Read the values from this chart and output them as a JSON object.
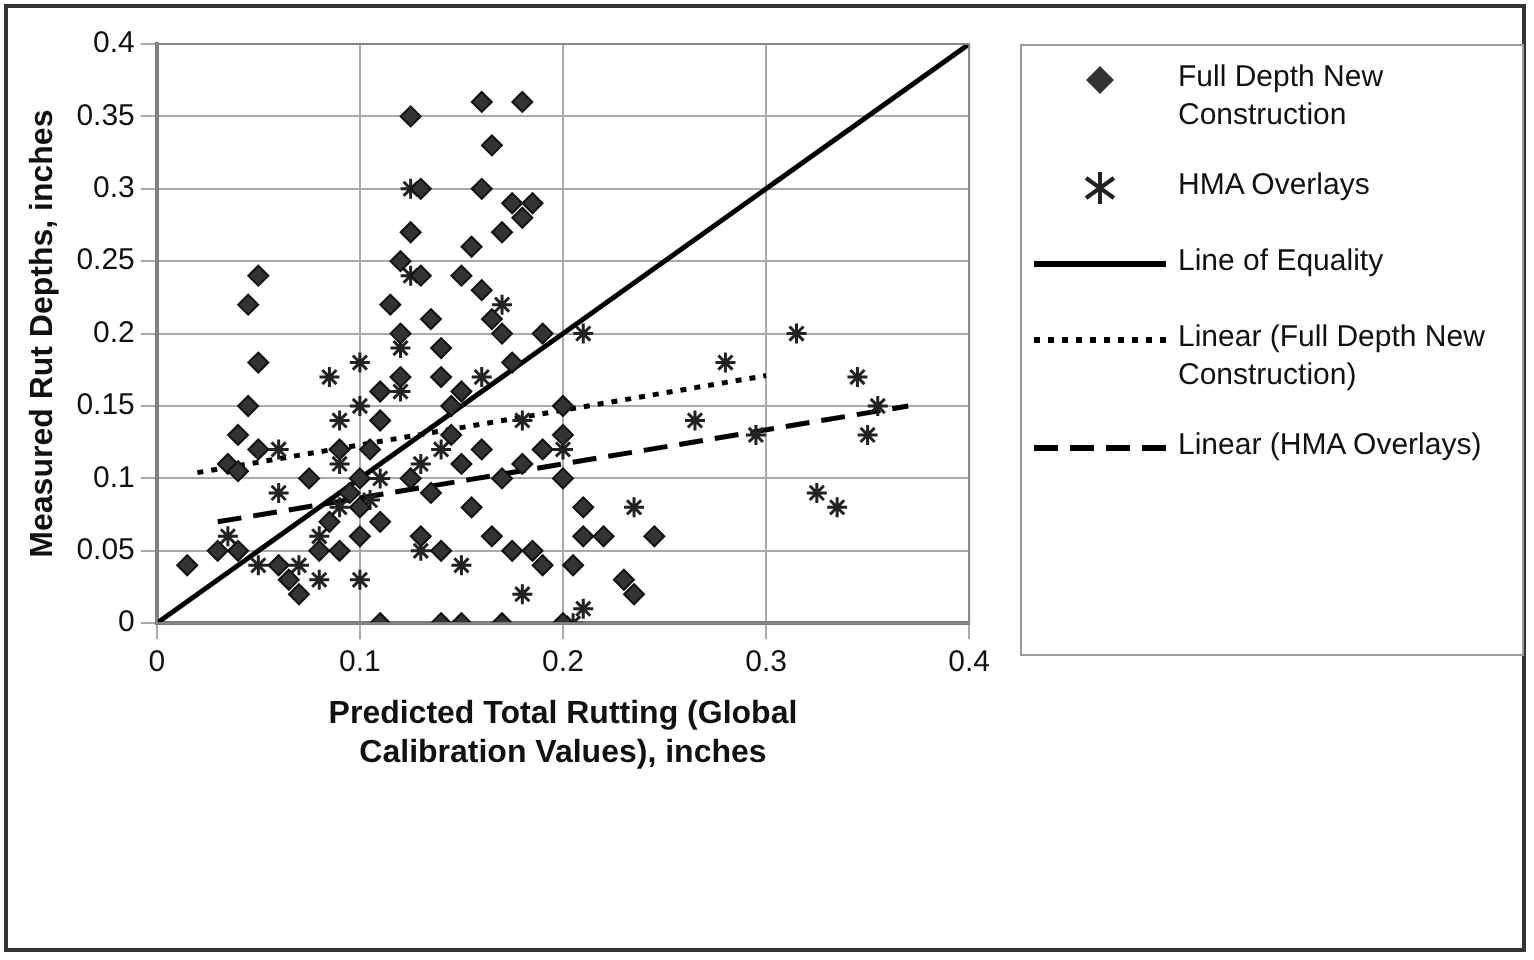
{
  "chart_data": {
    "type": "scatter",
    "xlabel": "Predicted Total Rutting (Global Calibration Values), inches",
    "ylabel": "Measured Rut Depths, inches",
    "xlim": [
      0,
      0.4
    ],
    "xticks": [
      0,
      0.1,
      0.2,
      0.3,
      0.4
    ],
    "ylim": [
      0,
      0.4
    ],
    "yticks": [
      0,
      0.05,
      0.1,
      0.15,
      0.2,
      0.25,
      0.3,
      0.35,
      0.4
    ],
    "grid": true,
    "legend": "right",
    "series": [
      {
        "name": "Full Depth New Construction",
        "type": "scatter",
        "marker": "diamond",
        "color": "#333333",
        "x": [
          0.05,
          0.045,
          0.05,
          0.045,
          0.04,
          0.035,
          0.04,
          0.05,
          0.015,
          0.03,
          0.04,
          0.06,
          0.065,
          0.07,
          0.09,
          0.085,
          0.095,
          0.1,
          0.1,
          0.105,
          0.11,
          0.11,
          0.12,
          0.12,
          0.115,
          0.125,
          0.13,
          0.125,
          0.12,
          0.13,
          0.135,
          0.14,
          0.14,
          0.145,
          0.15,
          0.155,
          0.16,
          0.165,
          0.16,
          0.18,
          0.175,
          0.18,
          0.17,
          0.16,
          0.165,
          0.17,
          0.175,
          0.19,
          0.185,
          0.2,
          0.2,
          0.19,
          0.18,
          0.17,
          0.16,
          0.15,
          0.155,
          0.165,
          0.175,
          0.185,
          0.19,
          0.205,
          0.22,
          0.23,
          0.235,
          0.245,
          0.2,
          0.17,
          0.15,
          0.14,
          0.11,
          0.125,
          0.135,
          0.13,
          0.14,
          0.145,
          0.15,
          0.08,
          0.075,
          0.09,
          0.1,
          0.11,
          0.2,
          0.21,
          0.21
        ],
        "values": [
          0.24,
          0.22,
          0.18,
          0.15,
          0.13,
          0.11,
          0.105,
          0.12,
          0.04,
          0.05,
          0.05,
          0.04,
          0.03,
          0.02,
          0.05,
          0.07,
          0.09,
          0.1,
          0.08,
          0.12,
          0.14,
          0.16,
          0.17,
          0.2,
          0.22,
          0.35,
          0.3,
          0.27,
          0.25,
          0.24,
          0.21,
          0.19,
          0.17,
          0.15,
          0.24,
          0.26,
          0.36,
          0.33,
          0.3,
          0.36,
          0.29,
          0.28,
          0.27,
          0.23,
          0.21,
          0.2,
          0.18,
          0.2,
          0.29,
          0.15,
          0.13,
          0.12,
          0.11,
          0.1,
          0.12,
          0.11,
          0.08,
          0.06,
          0.05,
          0.05,
          0.04,
          0.04,
          0.06,
          0.03,
          0.02,
          0.06,
          0,
          0,
          0,
          0,
          0,
          0.1,
          0.09,
          0.06,
          0.05,
          0.13,
          0.16,
          0.05,
          0.1,
          0.12,
          0.06,
          0.07,
          0.1,
          0.08,
          0.06
        ]
      },
      {
        "name": "HMA Overlays",
        "type": "scatter",
        "marker": "cross",
        "color": "#222222",
        "x": [
          0.085,
          0.09,
          0.06,
          0.1,
          0.12,
          0.125,
          0.125,
          0.12,
          0.1,
          0.09,
          0.08,
          0.07,
          0.05,
          0.035,
          0.06,
          0.105,
          0.11,
          0.09,
          0.13,
          0.14,
          0.16,
          0.17,
          0.13,
          0.1,
          0.08,
          0.15,
          0.18,
          0.21,
          0.205,
          0.18,
          0.2,
          0.235,
          0.265,
          0.28,
          0.295,
          0.315,
          0.325,
          0.335,
          0.345,
          0.35,
          0.355,
          0.21
        ],
        "values": [
          0.17,
          0.14,
          0.12,
          0.15,
          0.16,
          0.24,
          0.3,
          0.19,
          0.18,
          0.08,
          0.06,
          0.04,
          0.04,
          0.06,
          0.09,
          0.085,
          0.1,
          0.11,
          0.11,
          0.12,
          0.17,
          0.22,
          0.05,
          0.03,
          0.03,
          0.04,
          0.02,
          0.01,
          0,
          0.14,
          0.12,
          0.08,
          0.14,
          0.18,
          0.13,
          0.2,
          0.09,
          0.08,
          0.17,
          0.13,
          0.15,
          0.2
        ]
      },
      {
        "name": "Line of Equality",
        "type": "line",
        "marker": "none",
        "line_style": "solid",
        "color": "#000000",
        "x": [
          0,
          0.4
        ],
        "values": [
          0,
          0.4
        ]
      },
      {
        "name": "Linear (Full Depth New Construction)",
        "type": "line",
        "marker": "none",
        "line_style": "dotted",
        "color": "#000000",
        "x": [
          0.02,
          0.3
        ],
        "values": [
          0.104,
          0.171
        ]
      },
      {
        "name": "Linear (HMA Overlays)",
        "type": "line",
        "marker": "none",
        "line_style": "dashed",
        "color": "#000000",
        "x": [
          0.03,
          0.37
        ],
        "values": [
          0.07,
          0.15
        ]
      }
    ]
  }
}
